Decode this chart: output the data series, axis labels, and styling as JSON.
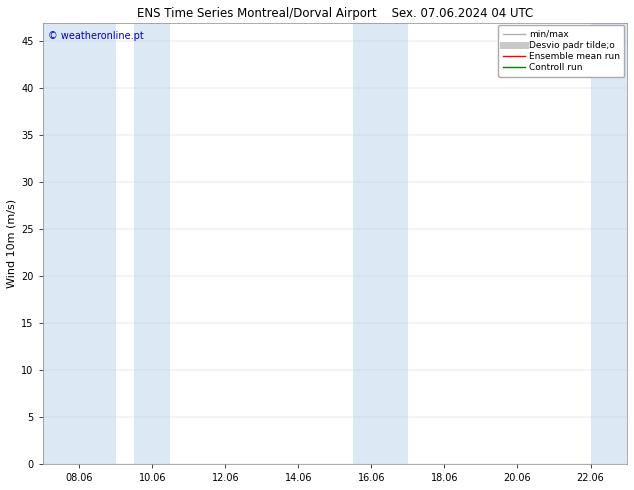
{
  "title_left": "ENS Time Series Montreal/Dorval Airport",
  "title_right": "Sex. 07.06.2024 04 UTC",
  "ylabel": "Wind 10m (m/s)",
  "watermark": "© weatheronline.pt",
  "watermark_color": "#0000cc",
  "ylim": [
    0,
    47
  ],
  "yticks": [
    0,
    5,
    10,
    15,
    20,
    25,
    30,
    35,
    40,
    45
  ],
  "xtick_labels": [
    "08.06",
    "10.06",
    "12.06",
    "14.06",
    "16.06",
    "18.06",
    "20.06",
    "22.06"
  ],
  "xlim_days": [
    7.0,
    23.0
  ],
  "xtick_day_positions": [
    8,
    10,
    12,
    14,
    16,
    18,
    20,
    22
  ],
  "bg_color": "#ffffff",
  "band_color": "#dce9f5",
  "band_positions": [
    [
      7.0,
      9.0
    ],
    [
      9.5,
      10.5
    ],
    [
      15.5,
      17.0
    ],
    [
      22.0,
      23.0
    ]
  ],
  "legend_entries": [
    {
      "label": "min/max",
      "color": "#b0b0b0",
      "lw": 1.0
    },
    {
      "label": "Desvio padr tilde;o",
      "color": "#c8c8c8",
      "lw": 5.0
    },
    {
      "label": "Ensemble mean run",
      "color": "#ff0000",
      "lw": 1.0
    },
    {
      "label": "Controll run",
      "color": "#008000",
      "lw": 1.0
    }
  ],
  "title_fontsize": 8.5,
  "ylabel_fontsize": 8,
  "tick_fontsize": 7,
  "legend_fontsize": 6.5,
  "watermark_fontsize": 7
}
